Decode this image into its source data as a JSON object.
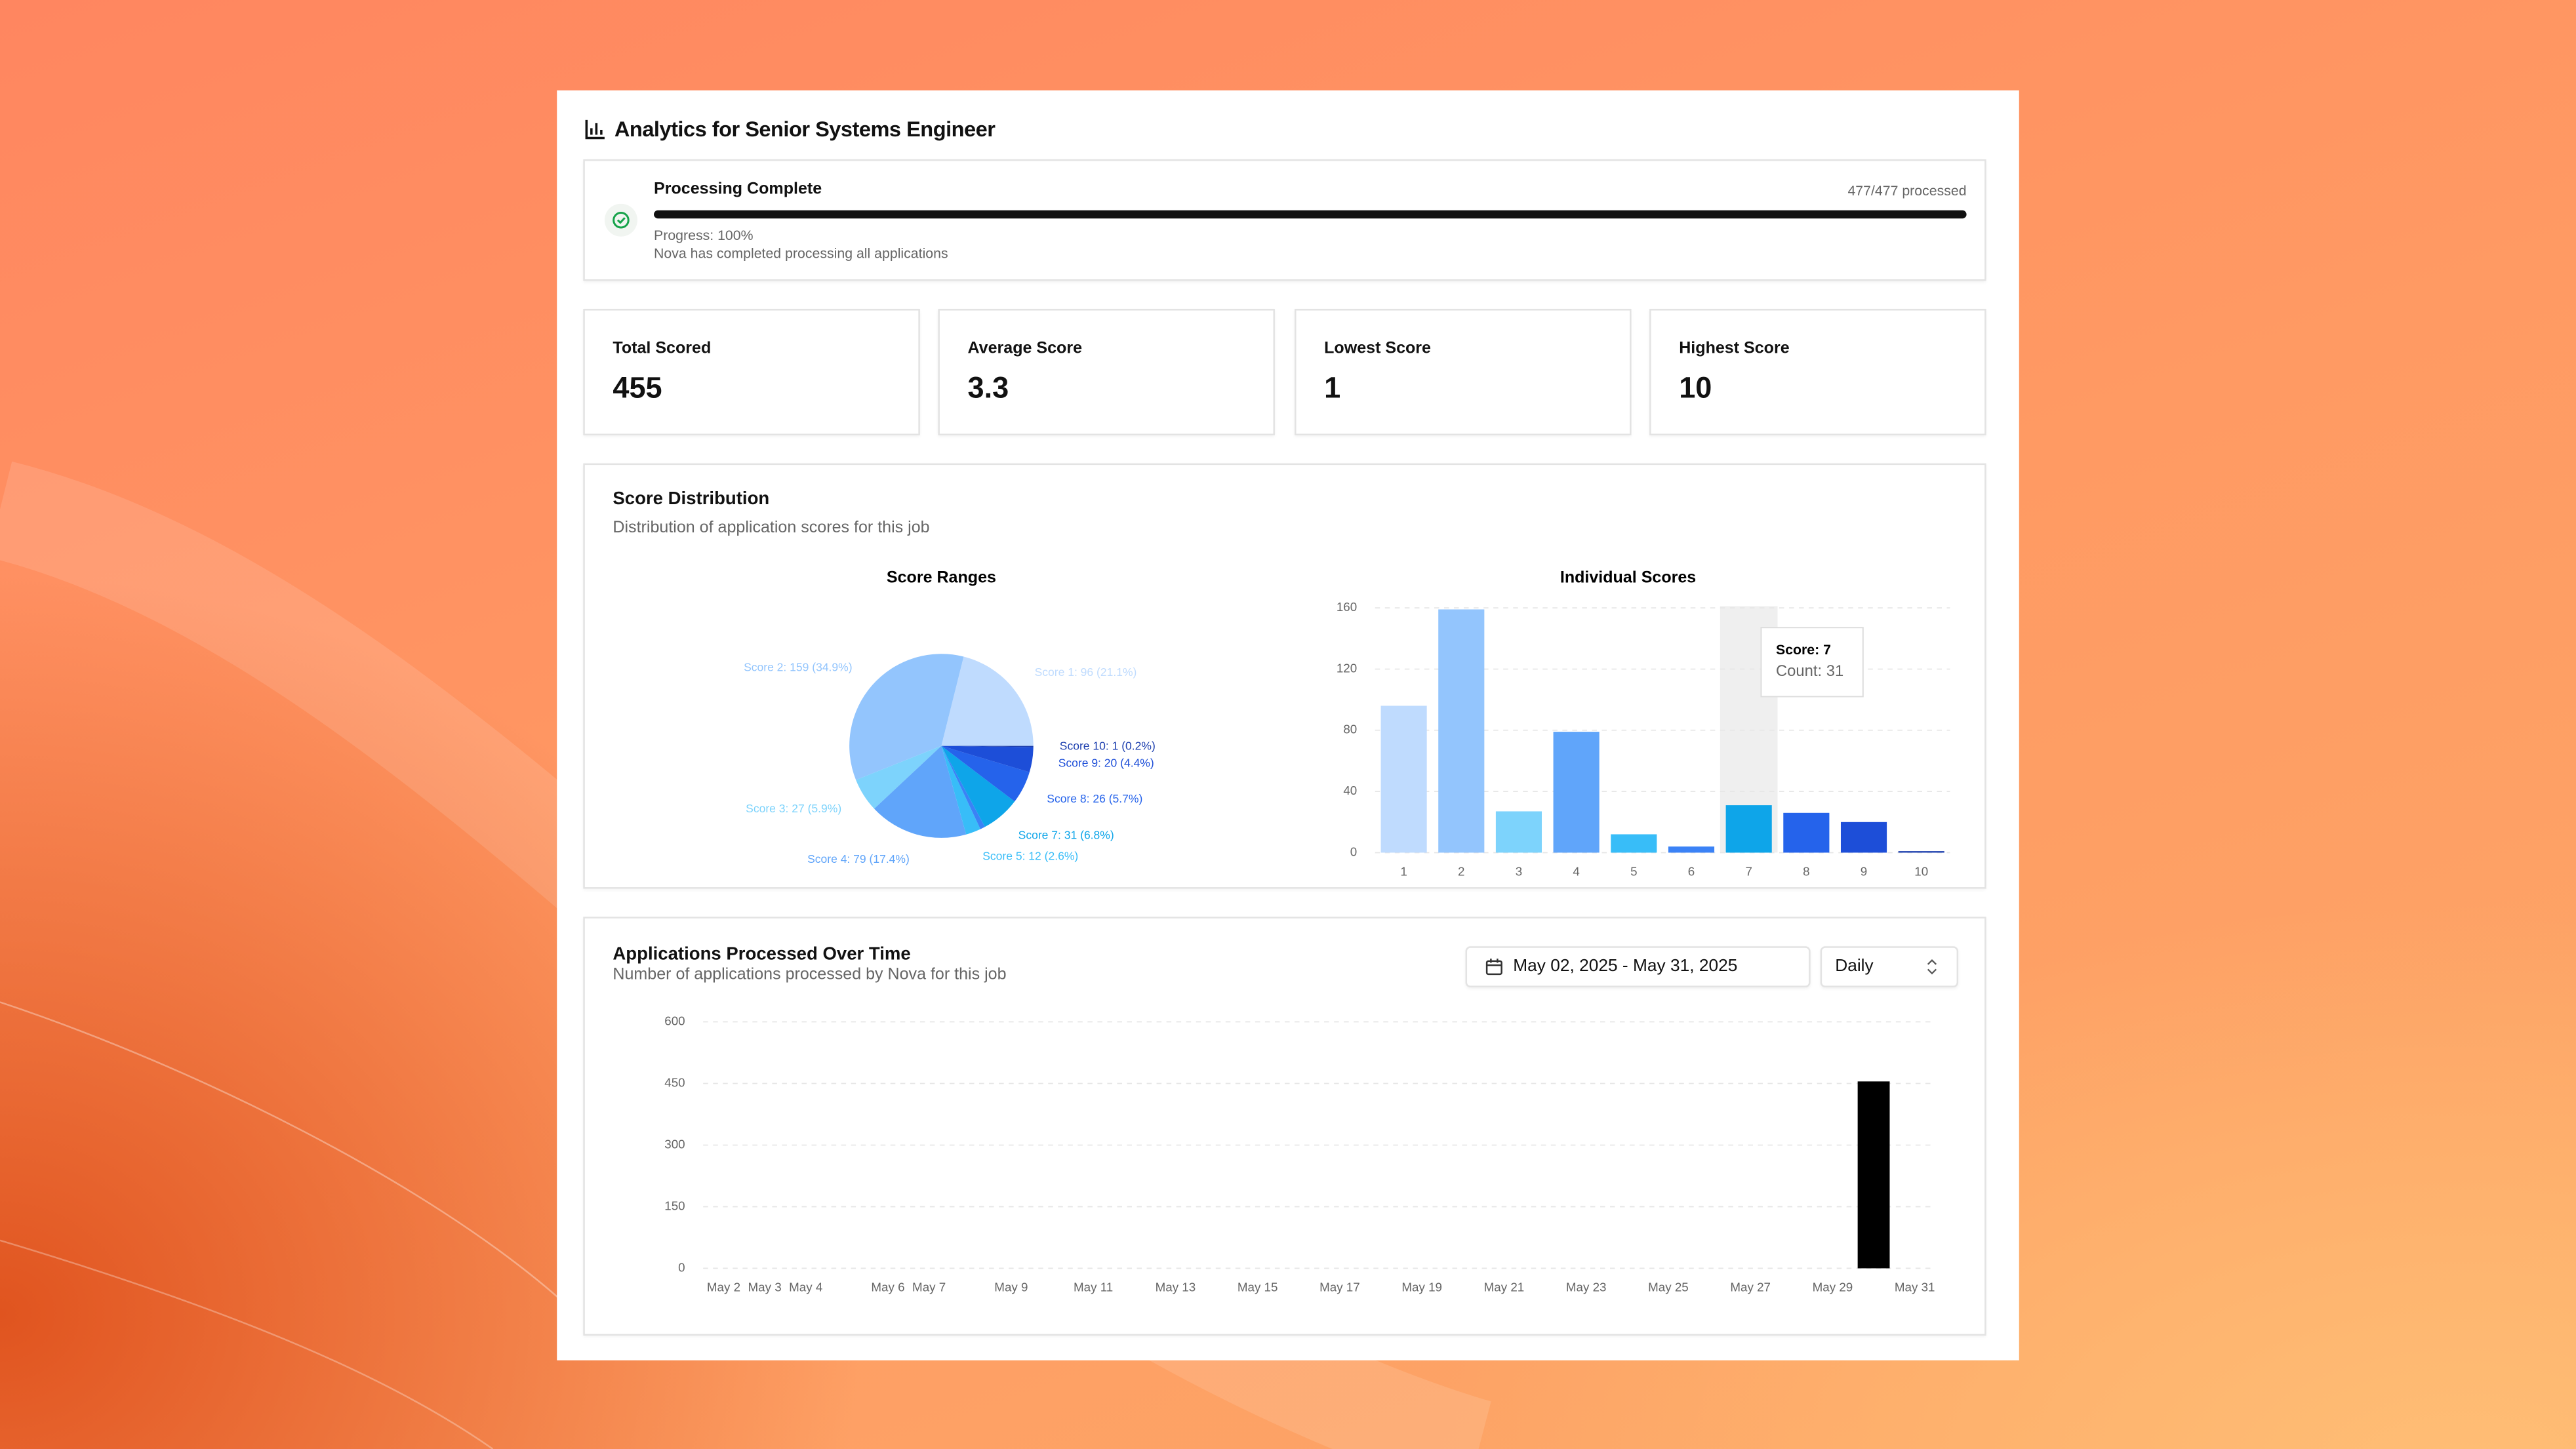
{
  "header": {
    "title": "Analytics for Senior Systems Engineer"
  },
  "progress": {
    "title": "Processing Complete",
    "count": "477/477 processed",
    "percent": "Progress: 100%",
    "message": "Nova has completed processing all applications"
  },
  "stats": [
    {
      "label": "Total Scored",
      "value": 455
    },
    {
      "label": "Average Score",
      "value": 3.3
    },
    {
      "label": "Lowest Score",
      "value": 1
    },
    {
      "label": "Highest Score",
      "value": 10
    }
  ],
  "score_distribution": {
    "title": "Score Distribution",
    "subtitle": "Distribution of application scores for this job"
  },
  "applications": {
    "date_range": "May 02, 2025 - May 31, 2025",
    "interval": "Daily"
  },
  "chart_data": [
    {
      "type": "pie",
      "title": "Score Ranges",
      "values": [
        96,
        159,
        27,
        79,
        12,
        4,
        31,
        26,
        20,
        1
      ],
      "value_labels": [
        "Score 1: 96 (21.1%)",
        "Score 2: 159 (34.9%)",
        "Score 3: 27 (5.9%)",
        "Score 4: 79 (17.4%)",
        "Score 5: 12 (2.6%)",
        null,
        "Score 7: 31 (6.8%)",
        "Score 8: 26 (5.7%)",
        "Score 9: 20 (4.4%)",
        "Score 10: 1 (0.2%)"
      ],
      "colors": [
        "#bfdbfe",
        "#93c5fd",
        "#7dd3fc",
        "#60a5fa",
        "#38bdf8",
        "#3b82f6",
        "#0ea5e9",
        "#2563eb",
        "#1d4ed8",
        "#1e40af"
      ]
    },
    {
      "type": "bar",
      "title": "Individual Scores",
      "categories": [
        "1",
        "2",
        "3",
        "4",
        "5",
        "6",
        "7",
        "8",
        "9",
        "10"
      ],
      "values": [
        96,
        159,
        27,
        79,
        12,
        4,
        31,
        26,
        20,
        1
      ],
      "colors": [
        "#bfdbfe",
        "#93c5fd",
        "#7dd3fc",
        "#60a5fa",
        "#38bdf8",
        "#3b82f6",
        "#0ea5e9",
        "#2563eb",
        "#1d4ed8",
        "#1e40af"
      ],
      "ylim": [
        0,
        160
      ],
      "yticks": [
        0,
        40,
        80,
        120,
        160
      ],
      "grid": true,
      "tooltip": {
        "title": "Score: 7",
        "body": "Count: 31"
      }
    },
    {
      "type": "bar",
      "title": "Applications Processed Over Time",
      "subtitle": "Number of applications processed by Nova for this job",
      "categories": [
        "May 2",
        "May 3",
        "May 4",
        null,
        "May 6",
        "May 7",
        null,
        "May 9",
        null,
        "May 11",
        null,
        "May 13",
        null,
        "May 15",
        null,
        "May 17",
        null,
        "May 19",
        null,
        "May 21",
        null,
        "May 23",
        null,
        "May 25",
        null,
        "May 27",
        null,
        "May 29",
        null,
        "May 31"
      ],
      "values": [
        0,
        0,
        0,
        0,
        0,
        0,
        0,
        0,
        0,
        0,
        0,
        0,
        0,
        0,
        0,
        0,
        0,
        0,
        0,
        0,
        0,
        0,
        0,
        0,
        0,
        0,
        0,
        0,
        455,
        0
      ],
      "color": "#000000",
      "ylim": [
        0,
        600
      ],
      "yticks": [
        0,
        150,
        300,
        450,
        600
      ],
      "grid": true
    }
  ]
}
